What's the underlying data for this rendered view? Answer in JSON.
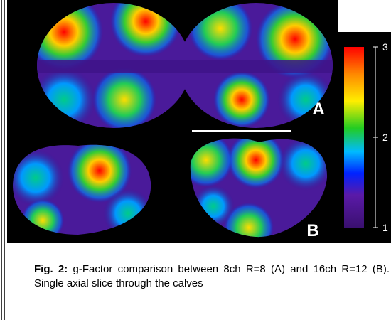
{
  "figure": {
    "panel_labels": [
      "A",
      "B"
    ],
    "colorbar": {
      "ticks": [
        "3",
        "2",
        "1"
      ]
    },
    "caption": {
      "label": "Fig. 2:",
      "text": "g-Factor comparison between 8ch R=8 (A) and 16ch R=12 (B).  Single axial slice through the calves"
    }
  }
}
